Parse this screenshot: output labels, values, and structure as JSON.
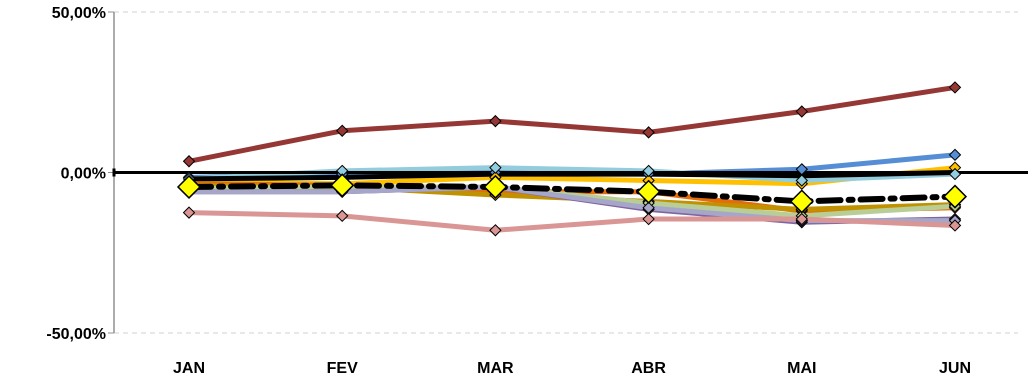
{
  "chart_data": {
    "type": "line",
    "title": "",
    "xlabel": "",
    "ylabel": "",
    "categories": [
      "JAN",
      "FEV",
      "MAR",
      "ABR",
      "MAI",
      "JUN"
    ],
    "y_ticks": [
      {
        "value": 50,
        "label": "50,00%"
      },
      {
        "value": 0,
        "label": "0,00%"
      },
      {
        "value": -50,
        "label": "-50,00%"
      }
    ],
    "ylim": [
      -50,
      50
    ],
    "grid": true,
    "legend": "none",
    "series": [
      {
        "color": "#953735",
        "values": [
          3.5,
          13.0,
          16.0,
          12.5,
          19.0,
          26.5
        ]
      },
      {
        "color": "#558ED5",
        "values": [
          -1.5,
          -0.5,
          0.0,
          -0.5,
          1.0,
          5.5
        ]
      },
      {
        "color": "#FFC000",
        "values": [
          -3.0,
          -3.5,
          -1.5,
          -2.5,
          -3.5,
          1.5
        ]
      },
      {
        "color": "#93CDDD",
        "values": [
          -2.0,
          0.5,
          1.5,
          0.5,
          -2.5,
          -0.5
        ]
      },
      {
        "color": "#000000",
        "values": [
          -2.0,
          -1.5,
          -0.5,
          -0.5,
          -1.0,
          0.0
        ]
      },
      {
        "color": "#E46C0A",
        "values": [
          -3.5,
          -4.0,
          -6.0,
          -6.0,
          -12.0,
          -11.0
        ]
      },
      {
        "color": "#C09100",
        "values": [
          -4.0,
          -4.5,
          -7.0,
          -9.0,
          -11.5,
          -10.0
        ]
      },
      {
        "color": "#B9CD96",
        "values": [
          -5.0,
          -4.5,
          -4.5,
          -9.5,
          -13.5,
          -10.5
        ]
      },
      {
        "color": "#8064A2",
        "values": [
          -6.0,
          -6.0,
          -4.5,
          -11.5,
          -15.5,
          -14.5
        ]
      },
      {
        "color": "#A6A6C8",
        "values": [
          -6.0,
          -6.0,
          -4.5,
          -11.0,
          -15.0,
          -15.0
        ]
      },
      {
        "color": "#D99694",
        "values": [
          -12.5,
          -13.5,
          -18.0,
          -14.5,
          -14.5,
          -16.5
        ]
      }
    ],
    "average": {
      "color": "#000000",
      "marker_color": "#FFFF00",
      "values": [
        -4.5,
        -4.0,
        -4.5,
        -6.0,
        -9.0,
        -7.5
      ]
    }
  }
}
